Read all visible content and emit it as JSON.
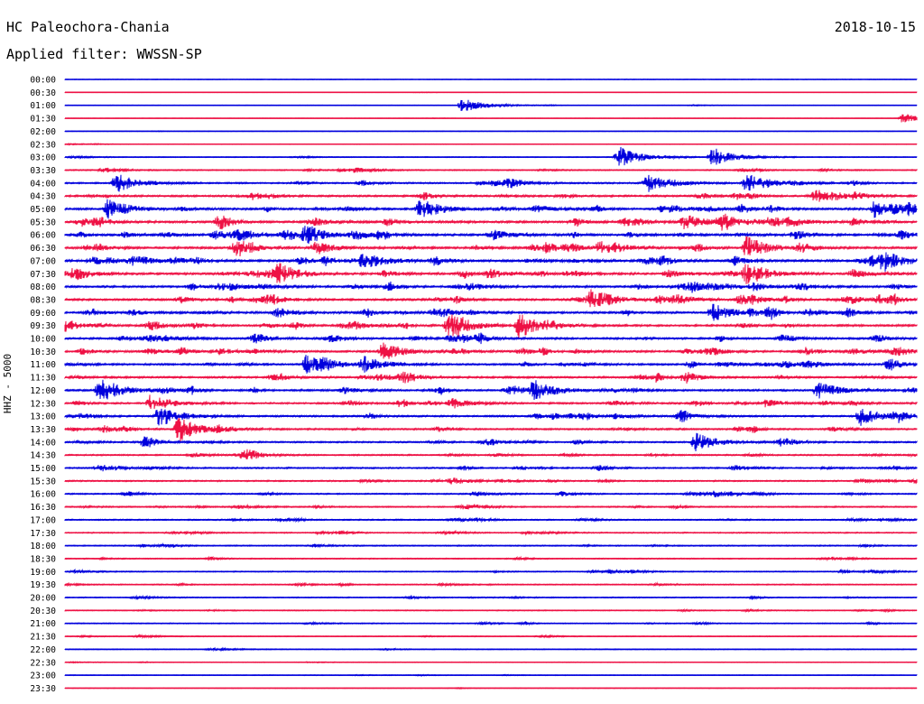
{
  "header": {
    "station": "HC Paleochora-Chania",
    "date": "2018-10-15",
    "filter": "Applied filter: WWSSN-SP"
  },
  "chart_data": {
    "type": "line",
    "title": "HC Paleochora-Chania",
    "date": "2018-10-15",
    "filter": "WWSSN-SP",
    "ylabel": "HHZ - 5000",
    "row_labels": [
      "00:00",
      "00:30",
      "01:00",
      "01:30",
      "02:00",
      "02:30",
      "03:00",
      "03:30",
      "04:00",
      "04:30",
      "05:00",
      "05:30",
      "06:00",
      "06:30",
      "07:00",
      "07:30",
      "08:00",
      "08:30",
      "09:00",
      "09:30",
      "10:00",
      "10:30",
      "11:00",
      "11:30",
      "12:00",
      "12:30",
      "13:00",
      "13:30",
      "14:00",
      "14:30",
      "15:00",
      "15:30",
      "16:00",
      "16:30",
      "17:00",
      "17:30",
      "18:00",
      "18:30",
      "19:00",
      "19:30",
      "20:00",
      "20:30",
      "21:00",
      "21:30",
      "22:00",
      "22:30",
      "23:00",
      "23:30"
    ],
    "series_colors": [
      "#0000dd",
      "#ee1144"
    ],
    "activity_level": [
      0.03,
      0.05,
      0.08,
      0.05,
      0.06,
      0.08,
      0.18,
      0.35,
      0.55,
      0.7,
      0.8,
      0.85,
      0.85,
      0.85,
      0.85,
      0.85,
      0.8,
      0.8,
      0.8,
      0.8,
      0.75,
      0.75,
      0.7,
      0.7,
      0.7,
      0.65,
      0.65,
      0.6,
      0.55,
      0.5,
      0.5,
      0.45,
      0.45,
      0.4,
      0.4,
      0.35,
      0.35,
      0.3,
      0.3,
      0.3,
      0.28,
      0.25,
      0.25,
      0.2,
      0.18,
      0.15,
      0.12,
      0.08
    ],
    "events": [
      {
        "row": 2,
        "minute": 14,
        "amp": 1.2
      },
      {
        "row": 3,
        "minute": 29.5,
        "amp": 0.8
      },
      {
        "row": 6,
        "minute": 19.5,
        "amp": 1.8
      },
      {
        "row": 6,
        "minute": 22.8,
        "amp": 1.6
      },
      {
        "row": 8,
        "minute": 1.8,
        "amp": 1.6
      },
      {
        "row": 8,
        "minute": 20.5,
        "amp": 1.5
      },
      {
        "row": 8,
        "minute": 24,
        "amp": 1.4
      },
      {
        "row": 10,
        "minute": 1.5,
        "amp": 1.6
      },
      {
        "row": 10,
        "minute": 12.5,
        "amp": 1.4
      },
      {
        "row": 10,
        "minute": 28.5,
        "amp": 1.3
      },
      {
        "row": 11,
        "minute": 21.8,
        "amp": 1.2
      },
      {
        "row": 12,
        "minute": 8.5,
        "amp": 1.1
      },
      {
        "row": 13,
        "minute": 24,
        "amp": 1.8
      },
      {
        "row": 14,
        "minute": 10.5,
        "amp": 1.4
      },
      {
        "row": 14,
        "minute": 28.8,
        "amp": 1.6
      },
      {
        "row": 15,
        "minute": 7.5,
        "amp": 1.4
      },
      {
        "row": 15,
        "minute": 24,
        "amp": 1.6
      },
      {
        "row": 17,
        "minute": 18.5,
        "amp": 1.4
      },
      {
        "row": 18,
        "minute": 22.8,
        "amp": 1.4
      },
      {
        "row": 19,
        "minute": 13.5,
        "amp": 1.8
      },
      {
        "row": 19,
        "minute": 16,
        "amp": 1.6
      },
      {
        "row": 21,
        "minute": 11.2,
        "amp": 1.3
      },
      {
        "row": 22,
        "minute": 8.5,
        "amp": 1.6
      },
      {
        "row": 22,
        "minute": 10.5,
        "amp": 1.3
      },
      {
        "row": 24,
        "minute": 1.2,
        "amp": 1.5
      },
      {
        "row": 24,
        "minute": 16.5,
        "amp": 1.6
      },
      {
        "row": 24,
        "minute": 26.5,
        "amp": 1.4
      },
      {
        "row": 25,
        "minute": 3,
        "amp": 1.4
      },
      {
        "row": 26,
        "minute": 3.3,
        "amp": 1.7
      },
      {
        "row": 26,
        "minute": 28,
        "amp": 1.5
      },
      {
        "row": 27,
        "minute": 4,
        "amp": 1.5
      },
      {
        "row": 28,
        "minute": 22.2,
        "amp": 1.5
      }
    ]
  }
}
